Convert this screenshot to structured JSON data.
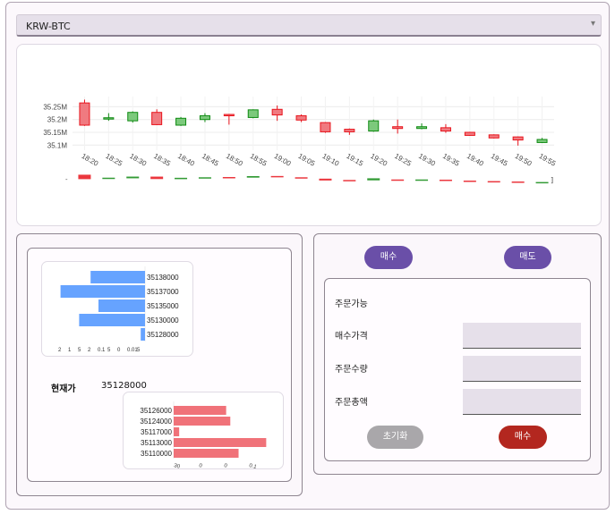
{
  "market_select": {
    "value": "KRW-BTC",
    "arrow": "▾"
  },
  "chart_data": [
    {
      "type": "candlestick",
      "title": "",
      "ylabel": "",
      "y_tick_labels": [
        "35.25M",
        "35.2M",
        "35.15M",
        "35.1M"
      ],
      "y_ticks": [
        35250000,
        35200000,
        35150000,
        35100000
      ],
      "ylim": [
        35080000,
        35290000
      ],
      "x": [
        "18:20",
        "18:25",
        "18:30",
        "18:35",
        "18:40",
        "18:45",
        "18:50",
        "18:55",
        "19:00",
        "19:05",
        "19:10",
        "19:15",
        "19:20",
        "19:25",
        "19:30",
        "19:35",
        "19:40",
        "19:45",
        "19:50",
        "19:55"
      ],
      "candles": [
        {
          "open": 35265000,
          "close": 35178000,
          "high": 35278000,
          "low": 35175000
        },
        {
          "open": 35205000,
          "close": 35207000,
          "high": 35225000,
          "low": 35195000
        },
        {
          "open": 35195000,
          "close": 35228000,
          "high": 35232000,
          "low": 35188000
        },
        {
          "open": 35228000,
          "close": 35180000,
          "high": 35240000,
          "low": 35178000
        },
        {
          "open": 35178000,
          "close": 35205000,
          "high": 35210000,
          "low": 35175000
        },
        {
          "open": 35200000,
          "close": 35215000,
          "high": 35225000,
          "low": 35190000
        },
        {
          "open": 35220000,
          "close": 35217000,
          "high": 35222000,
          "low": 35180000
        },
        {
          "open": 35208000,
          "close": 35238000,
          "high": 35240000,
          "low": 35205000
        },
        {
          "open": 35240000,
          "close": 35218000,
          "high": 35255000,
          "low": 35195000
        },
        {
          "open": 35215000,
          "close": 35198000,
          "high": 35220000,
          "low": 35190000
        },
        {
          "open": 35188000,
          "close": 35152000,
          "high": 35190000,
          "low": 35148000
        },
        {
          "open": 35162000,
          "close": 35152000,
          "high": 35165000,
          "low": 35140000
        },
        {
          "open": 35155000,
          "close": 35195000,
          "high": 35200000,
          "low": 35152000
        },
        {
          "open": 35172000,
          "close": 35165000,
          "high": 35200000,
          "low": 35145000
        },
        {
          "open": 35165000,
          "close": 35172000,
          "high": 35185000,
          "low": 35162000
        },
        {
          "open": 35168000,
          "close": 35155000,
          "high": 35182000,
          "low": 35148000
        },
        {
          "open": 35150000,
          "close": 35138000,
          "high": 35152000,
          "low": 35136000
        },
        {
          "open": 35140000,
          "close": 35128000,
          "high": 35142000,
          "low": 35126000
        },
        {
          "open": 35132000,
          "close": 35120000,
          "high": 35134000,
          "low": 35098000
        },
        {
          "open": 35110000,
          "close": 35122000,
          "high": 35128000,
          "low": 35108000
        }
      ],
      "colors": {
        "up": "#0f8a12",
        "down": "#e8141c",
        "down_fill": "#f07a80",
        "up_fill": "#7cc97c"
      }
    },
    {
      "type": "bar",
      "title": "",
      "categories": [
        "35138000",
        "35137000",
        "35135000",
        "35130000",
        "35128000"
      ],
      "values": [
        0.76,
        1.18,
        0.65,
        0.92,
        0.06
      ],
      "x_tick_labels": [
        "2",
        "1",
        "5",
        "2",
        "0.1",
        "5",
        "0",
        "0.01",
        "5"
      ],
      "color": "#66a3ff"
    },
    {
      "type": "bar",
      "title": "",
      "categories": [
        "35126000",
        "35124000",
        "35117000",
        "35113000",
        "35110000"
      ],
      "values": [
        0.38,
        0.41,
        0.04,
        0.67,
        0.47
      ],
      "x_tick_labels": [
        "30",
        "0",
        "0",
        "0.1"
      ],
      "color": "#f07279"
    }
  ],
  "current_price": {
    "label": "현재가",
    "value": "35128000"
  },
  "order": {
    "buy_tab": "매수",
    "sell_tab": "매도",
    "available_label": "주문가능",
    "price_label": "매수가격",
    "quantity_label": "주문수량",
    "total_label": "주문총액",
    "reset_button": "초기화",
    "submit_button": "매수"
  }
}
